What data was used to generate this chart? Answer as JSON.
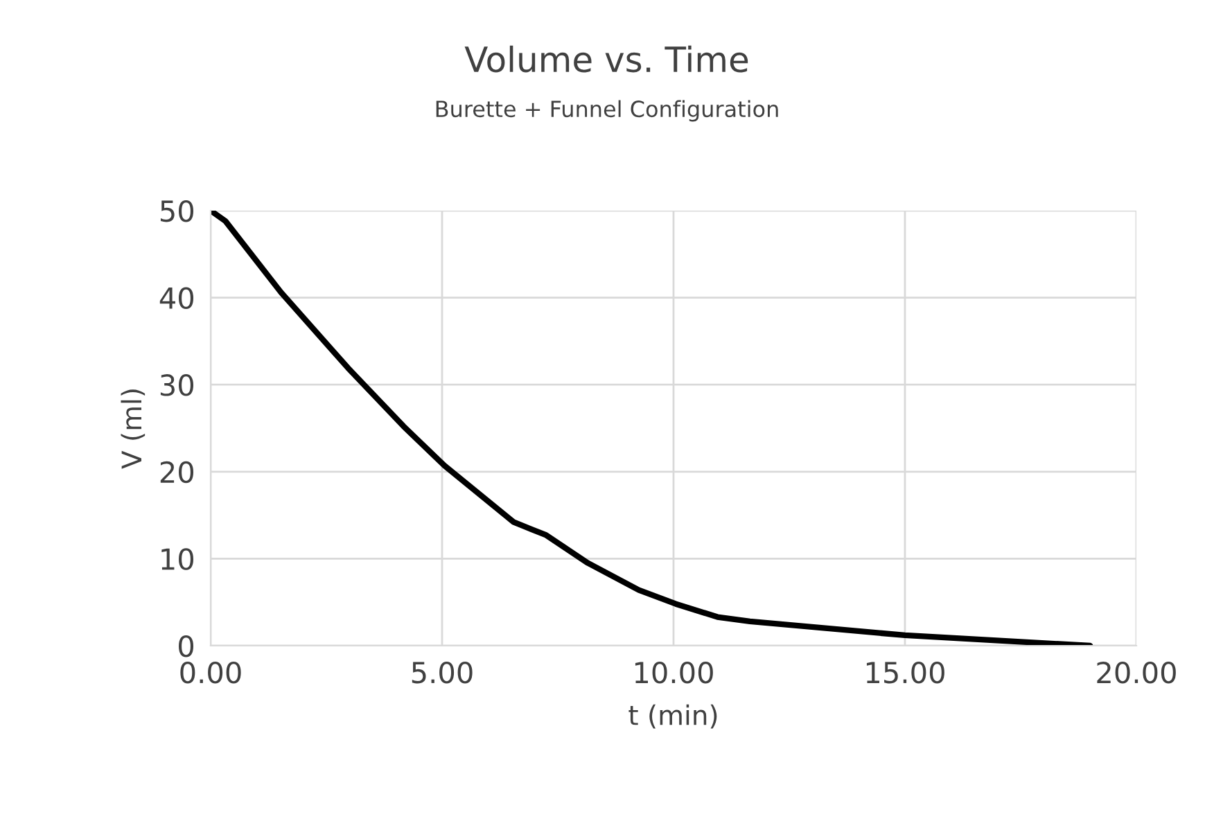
{
  "chart_data": {
    "type": "line",
    "title": "Volume vs. Time",
    "subtitle": "Burette + Funnel Configuration",
    "xlabel": "t (min)",
    "ylabel": "V (ml)",
    "x": [
      0,
      0.32,
      1.52,
      2.97,
      4.17,
      5.05,
      6.55,
      7.25,
      8.15,
      9.25,
      10.05,
      10.95,
      11.65,
      15.0,
      19.0
    ],
    "series": [
      {
        "color": "#000000",
        "values": [
          50,
          48.8,
          40.6,
          31.9,
          25.2,
          20.7,
          14.2,
          12.7,
          9.5,
          6.4,
          4.8,
          3.3,
          2.8,
          1.2,
          0
        ]
      }
    ],
    "xlim": [
      0,
      20
    ],
    "xticks": [
      {
        "value": 0,
        "label": "0.00"
      },
      {
        "value": 5,
        "label": "5.00"
      },
      {
        "value": 10,
        "label": "10.00"
      },
      {
        "value": 15,
        "label": "15.00"
      },
      {
        "value": 20,
        "label": "20.00"
      }
    ],
    "ylim": [
      0,
      50
    ],
    "yticks": [
      0,
      10,
      20,
      30,
      40,
      50
    ],
    "grid": true,
    "legend": false
  }
}
